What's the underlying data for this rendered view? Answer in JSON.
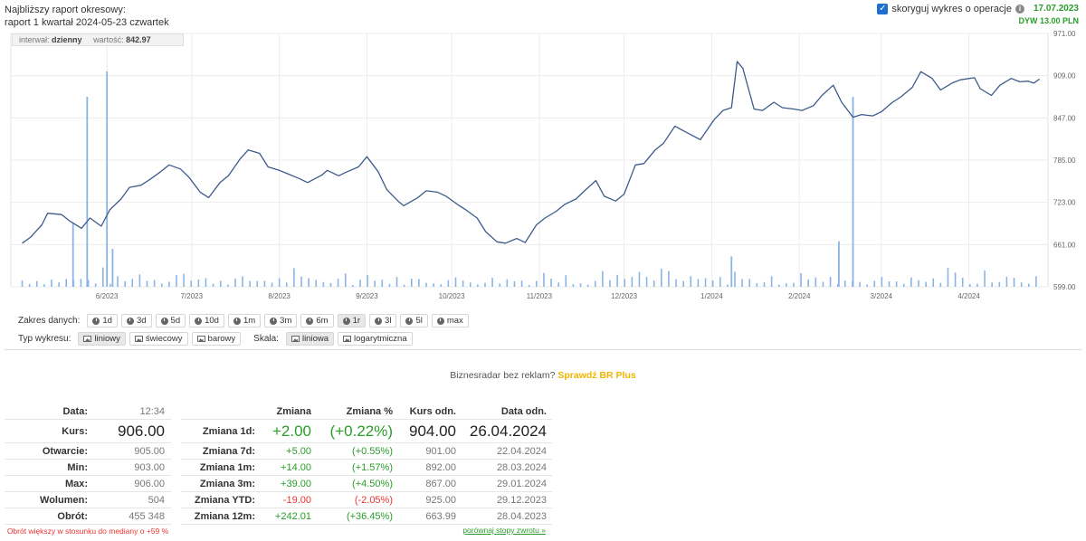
{
  "header": {
    "report_line1": "Najbliższy raport okresowy:",
    "report_line2": "raport 1 kwartał 2024-05-23 czwartek",
    "adjust_label": "skoryguj wykres o operacje",
    "adjust_checked": true,
    "date": "17.07.2023",
    "dividend": "DYW 13.00 PLN"
  },
  "infobox": {
    "interval_label": "interwał:",
    "interval_value": "dzienny",
    "value_label": "wartość:",
    "value_value": "842.97"
  },
  "chart_data": {
    "type": "line",
    "title": "",
    "y_ticks": [
      "971.00",
      "909.00",
      "847.00",
      "785.00",
      "723.00",
      "661.00",
      "599.00"
    ],
    "ylim": [
      599,
      971
    ],
    "x_ticks": [
      "6/2023",
      "7/2023",
      "8/2023",
      "9/2023",
      "10/2023",
      "11/2023",
      "12/2023",
      "1/2024",
      "2/2024",
      "3/2024",
      "4/2024"
    ],
    "price_series": [
      [
        "2023-05-02",
        663
      ],
      [
        "2023-05-05",
        672
      ],
      [
        "2023-05-09",
        690
      ],
      [
        "2023-05-11",
        707
      ],
      [
        "2023-05-16",
        705
      ],
      [
        "2023-05-19",
        695
      ],
      [
        "2023-05-23",
        685
      ],
      [
        "2023-05-26",
        700
      ],
      [
        "2023-05-30",
        688
      ],
      [
        "2023-06-02",
        712
      ],
      [
        "2023-06-06",
        728
      ],
      [
        "2023-06-09",
        745
      ],
      [
        "2023-06-13",
        748
      ],
      [
        "2023-06-16",
        756
      ],
      [
        "2023-06-20",
        768
      ],
      [
        "2023-06-23",
        778
      ],
      [
        "2023-06-27",
        772
      ],
      [
        "2023-06-30",
        760
      ],
      [
        "2023-07-04",
        738
      ],
      [
        "2023-07-07",
        730
      ],
      [
        "2023-07-11",
        752
      ],
      [
        "2023-07-14",
        762
      ],
      [
        "2023-07-18",
        786
      ],
      [
        "2023-07-21",
        800
      ],
      [
        "2023-07-25",
        795
      ],
      [
        "2023-07-28",
        775
      ],
      [
        "2023-08-01",
        770
      ],
      [
        "2023-08-04",
        765
      ],
      [
        "2023-08-08",
        758
      ],
      [
        "2023-08-11",
        752
      ],
      [
        "2023-08-16",
        763
      ],
      [
        "2023-08-18",
        770
      ],
      [
        "2023-08-22",
        762
      ],
      [
        "2023-08-25",
        768
      ],
      [
        "2023-08-29",
        775
      ],
      [
        "2023-09-01",
        790
      ],
      [
        "2023-09-05",
        768
      ],
      [
        "2023-09-08",
        742
      ],
      [
        "2023-09-12",
        725
      ],
      [
        "2023-09-14",
        718
      ],
      [
        "2023-09-19",
        730
      ],
      [
        "2023-09-22",
        740
      ],
      [
        "2023-09-26",
        738
      ],
      [
        "2023-09-29",
        732
      ],
      [
        "2023-10-03",
        720
      ],
      [
        "2023-10-06",
        712
      ],
      [
        "2023-10-10",
        700
      ],
      [
        "2023-10-13",
        680
      ],
      [
        "2023-10-17",
        665
      ],
      [
        "2023-10-20",
        663
      ],
      [
        "2023-10-24",
        670
      ],
      [
        "2023-10-27",
        664
      ],
      [
        "2023-10-31",
        690
      ],
      [
        "2023-11-03",
        700
      ],
      [
        "2023-11-07",
        710
      ],
      [
        "2023-11-10",
        720
      ],
      [
        "2023-11-14",
        728
      ],
      [
        "2023-11-17",
        740
      ],
      [
        "2023-11-21",
        755
      ],
      [
        "2023-11-24",
        732
      ],
      [
        "2023-11-28",
        725
      ],
      [
        "2023-12-01",
        735
      ],
      [
        "2023-12-05",
        778
      ],
      [
        "2023-12-08",
        780
      ],
      [
        "2023-12-12",
        800
      ],
      [
        "2023-12-15",
        810
      ],
      [
        "2023-12-19",
        835
      ],
      [
        "2023-12-22",
        828
      ],
      [
        "2023-12-28",
        815
      ],
      [
        "2024-01-02",
        845
      ],
      [
        "2024-01-05",
        858
      ],
      [
        "2024-01-08",
        862
      ],
      [
        "2024-01-10",
        930
      ],
      [
        "2024-01-12",
        920
      ],
      [
        "2024-01-16",
        860
      ],
      [
        "2024-01-19",
        858
      ],
      [
        "2024-01-23",
        870
      ],
      [
        "2024-01-26",
        862
      ],
      [
        "2024-01-30",
        860
      ],
      [
        "2024-02-02",
        858
      ],
      [
        "2024-02-06",
        865
      ],
      [
        "2024-02-09",
        880
      ],
      [
        "2024-02-13",
        895
      ],
      [
        "2024-02-16",
        870
      ],
      [
        "2024-02-20",
        848
      ],
      [
        "2024-02-23",
        852
      ],
      [
        "2024-02-27",
        850
      ],
      [
        "2024-03-01",
        856
      ],
      [
        "2024-03-05",
        870
      ],
      [
        "2024-03-08",
        878
      ],
      [
        "2024-03-12",
        892
      ],
      [
        "2024-03-15",
        915
      ],
      [
        "2024-03-19",
        905
      ],
      [
        "2024-03-22",
        888
      ],
      [
        "2024-03-26",
        898
      ],
      [
        "2024-03-29",
        903
      ],
      [
        "2024-04-03",
        906
      ],
      [
        "2024-04-05",
        890
      ],
      [
        "2024-04-09",
        880
      ],
      [
        "2024-04-12",
        895
      ],
      [
        "2024-04-16",
        905
      ],
      [
        "2024-04-19",
        900
      ],
      [
        "2024-04-22",
        901
      ],
      [
        "2024-04-24",
        898
      ],
      [
        "2024-04-26",
        904
      ]
    ],
    "volume_spikes": [
      [
        "2023-05-20",
        0.25
      ],
      [
        "2023-05-25",
        0.75
      ],
      [
        "2023-06-01",
        0.85
      ],
      [
        "2023-06-03",
        0.15
      ],
      [
        "2024-02-15",
        0.18
      ],
      [
        "2024-02-20",
        0.75
      ],
      [
        "2024-01-08",
        0.12
      ]
    ]
  },
  "controls": {
    "range_label": "Zakres danych:",
    "ranges": [
      "1d",
      "3d",
      "5d",
      "10d",
      "1m",
      "3m",
      "6m",
      "1r",
      "3l",
      "5l",
      "max"
    ],
    "active_range": "1r",
    "type_label": "Typ wykresu:",
    "types": [
      "liniowy",
      "świecowy",
      "barowy"
    ],
    "scale_label": "Skala:",
    "scales": [
      "liniowa",
      "logarytmiczna"
    ]
  },
  "ad": {
    "text": "Biznesradar bez reklam?",
    "link": "Sprawdź BR Plus"
  },
  "quote": {
    "rows": [
      {
        "k": "Data:",
        "v": "12:34"
      },
      {
        "k": "Kurs:",
        "v": "906.00"
      },
      {
        "k": "Otwarcie:",
        "v": "905.00"
      },
      {
        "k": "Min:",
        "v": "903.00"
      },
      {
        "k": "Max:",
        "v": "906.00"
      },
      {
        "k": "Wolumen:",
        "v": "504"
      },
      {
        "k": "Obrót:",
        "v": "455 348"
      }
    ],
    "note": "Obrót większy w stosunku do mediany o +59 %"
  },
  "changes": {
    "headers": [
      "",
      "Zmiana",
      "Zmiana %",
      "Kurs odn.",
      "Data odn."
    ],
    "rows": [
      {
        "k": "Zmiana 1d:",
        "ch": "+2.00",
        "pct": "(+0.22%)",
        "ref": "904.00",
        "date": "26.04.2024"
      },
      {
        "k": "Zmiana 7d:",
        "ch": "+5.00",
        "pct": "(+0.55%)",
        "ref": "901.00",
        "date": "22.04.2024"
      },
      {
        "k": "Zmiana 1m:",
        "ch": "+14.00",
        "pct": "(+1.57%)",
        "ref": "892.00",
        "date": "28.03.2024"
      },
      {
        "k": "Zmiana 3m:",
        "ch": "+39.00",
        "pct": "(+4.50%)",
        "ref": "867.00",
        "date": "29.01.2024"
      },
      {
        "k": "Zmiana YTD:",
        "ch": "-19.00",
        "pct": "(-2.05%)",
        "ref": "925.00",
        "date": "29.12.2023"
      },
      {
        "k": "Zmiana 12m:",
        "ch": "+242.01",
        "pct": "(+36.45%)",
        "ref": "663.99",
        "date": "28.04.2023"
      }
    ],
    "compare_link": "porównaj stopy zwrotu »"
  },
  "colors": {
    "line": "#3d5a8a",
    "volume": "#8ab4e6",
    "green": "#2a9d2a",
    "red": "#e33",
    "ad_link": "#f0b400"
  }
}
